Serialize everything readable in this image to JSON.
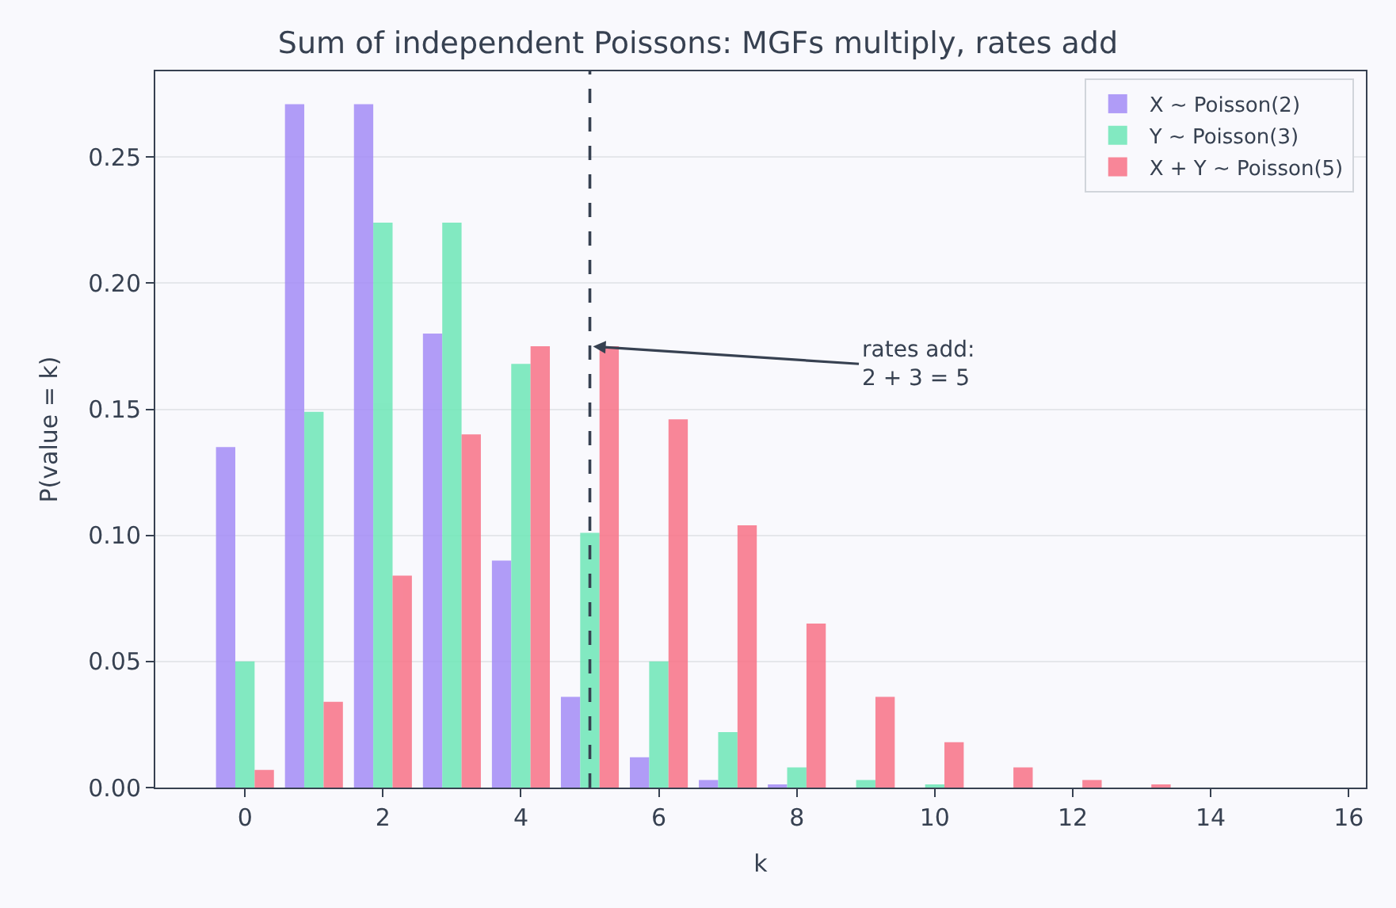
{
  "chart_data": {
    "type": "bar",
    "title": "Sum of independent Poissons: MGFs multiply, rates add",
    "xlabel": "k",
    "ylabel": "P(value = k)",
    "x": [
      0,
      1,
      2,
      3,
      4,
      5,
      6,
      7,
      8,
      9,
      10,
      11,
      12,
      13,
      14,
      15
    ],
    "series": [
      {
        "name": "X ∼ Poisson(2)",
        "color": "#a48cf6",
        "values": [
          0.135,
          0.271,
          0.271,
          0.18,
          0.09,
          0.036,
          0.012,
          0.003,
          0.001,
          0.0,
          0.0,
          0.0,
          0.0,
          0.0,
          0.0,
          0.0
        ]
      },
      {
        "name": "Y ∼ Poisson(3)",
        "color": "#6ee7b7",
        "values": [
          0.05,
          0.149,
          0.224,
          0.224,
          0.168,
          0.101,
          0.05,
          0.022,
          0.008,
          0.003,
          0.001,
          0.0,
          0.0,
          0.0,
          0.0,
          0.0
        ]
      },
      {
        "name": "X + Y ∼ Poisson(5)",
        "color": "#f87287",
        "values": [
          0.007,
          0.034,
          0.084,
          0.14,
          0.175,
          0.175,
          0.146,
          0.104,
          0.065,
          0.036,
          0.018,
          0.008,
          0.003,
          0.001,
          0.0,
          0.0
        ]
      }
    ],
    "xlim": [
      -1.3,
      16.25
    ],
    "xticks": [
      0,
      2,
      4,
      6,
      8,
      10,
      12,
      14,
      16
    ],
    "ylim": [
      0,
      0.284
    ],
    "yticks": [
      {
        "value": 0,
        "label": "0.00"
      },
      {
        "value": 0.05,
        "label": "0.05"
      },
      {
        "value": 0.1,
        "label": "0.10"
      },
      {
        "value": 0.15,
        "label": "0.15"
      },
      {
        "value": 0.2,
        "label": "0.20"
      },
      {
        "value": 0.25,
        "label": "0.25"
      }
    ],
    "ref_lines": [
      {
        "axis": "x",
        "value": 5,
        "color": "#374151",
        "line_style": "dashed"
      }
    ],
    "annotations": [
      {
        "text": "rates add:\n2 + 3 = 5",
        "x": 5,
        "y": 0.175
      }
    ],
    "grid": "y",
    "legend": "top right"
  }
}
